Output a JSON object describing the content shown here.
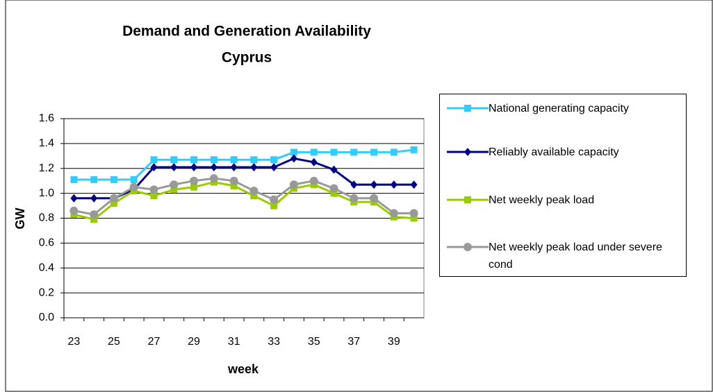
{
  "chart_data": {
    "type": "line",
    "title": [
      "Demand and Generation Availability",
      "Cyprus"
    ],
    "x_label": "week",
    "y_label": "GW",
    "categories": [
      "23",
      null,
      "25",
      null,
      "27",
      null,
      "29",
      null,
      "31",
      null,
      "33",
      null,
      "35",
      null,
      "37",
      null,
      "39",
      null
    ],
    "ylim": [
      0,
      1.6
    ],
    "yticks": [
      {
        "value": 0,
        "label": "0.0"
      },
      0.2,
      0.4,
      0.6,
      0.8,
      {
        "value": 1,
        "label": "1.0"
      },
      1.2,
      1.4,
      1.6
    ],
    "grid": true,
    "legend": "right",
    "series": [
      {
        "name": "National generating capacity",
        "color": "#33ccff",
        "marker": "square",
        "values": [
          1.11,
          1.11,
          1.11,
          1.11,
          1.27,
          1.27,
          1.27,
          1.27,
          1.27,
          1.27,
          1.27,
          1.33,
          1.33,
          1.33,
          1.33,
          1.33,
          1.33,
          1.35
        ]
      },
      {
        "name": "Reliably available capacity",
        "color": "#000080",
        "marker": "diamond",
        "values": [
          0.96,
          0.96,
          0.96,
          1.03,
          1.21,
          1.21,
          1.21,
          1.21,
          1.21,
          1.21,
          1.21,
          1.28,
          1.25,
          1.19,
          1.07,
          1.07,
          1.07,
          1.07
        ]
      },
      {
        "name": "Net weekly peak load",
        "color": "#99cc00",
        "marker": "square",
        "values": [
          0.83,
          0.79,
          0.92,
          1.02,
          0.98,
          1.03,
          1.05,
          1.09,
          1.06,
          0.98,
          0.9,
          1.04,
          1.07,
          1.0,
          0.93,
          0.93,
          0.81,
          0.8
        ]
      },
      {
        "name": "Net weekly peak load under severe cond",
        "color": "#999999",
        "marker": "circle",
        "values": [
          0.86,
          0.83,
          0.96,
          1.05,
          1.03,
          1.07,
          1.1,
          1.12,
          1.1,
          1.02,
          0.95,
          1.07,
          1.1,
          1.04,
          0.96,
          0.96,
          0.84,
          0.84
        ]
      }
    ]
  }
}
